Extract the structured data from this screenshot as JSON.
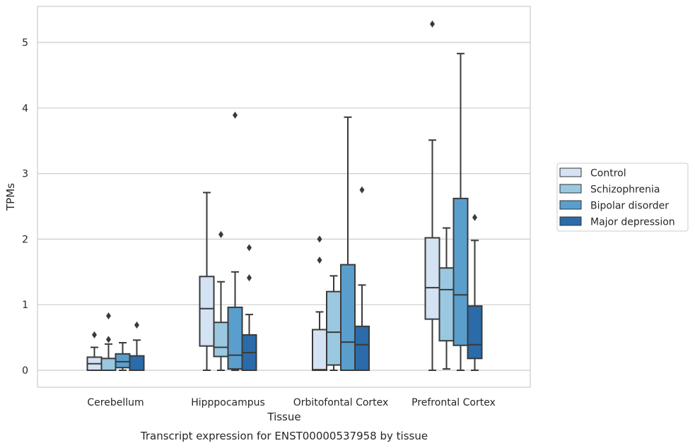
{
  "chart_data": {
    "type": "box",
    "caption": "Transcript expression for ENST00000537958 by tissue",
    "xlabel": "Tissue",
    "ylabel": "TPMs",
    "ylim": [
      -0.25,
      5.55
    ],
    "yticks": [
      0,
      1,
      2,
      3,
      4,
      5
    ],
    "grid": "horizontal",
    "legend_position": "right",
    "categories": [
      "Cerebellum",
      "Hipppocampus",
      "Orbitofontal Cortex",
      "Prefrontal Cortex"
    ],
    "series": [
      {
        "name": "Control",
        "color": "#d3e3f3",
        "boxes": [
          {
            "whislo": 0.0,
            "q1": 0.0,
            "med": 0.1,
            "q3": 0.2,
            "whishi": 0.35,
            "fliers": [
              0.54
            ]
          },
          {
            "whislo": 0.0,
            "q1": 0.37,
            "med": 0.94,
            "q3": 1.43,
            "whishi": 2.71,
            "fliers": []
          },
          {
            "whislo": 0.0,
            "q1": 0.0,
            "med": 0.01,
            "q3": 0.62,
            "whishi": 0.89,
            "fliers": [
              1.68,
              2.0
            ]
          },
          {
            "whislo": 0.0,
            "q1": 0.78,
            "med": 1.26,
            "q3": 2.02,
            "whishi": 3.51,
            "fliers": [
              5.28
            ]
          }
        ]
      },
      {
        "name": "Schizophrenia",
        "color": "#9ac8e0",
        "boxes": [
          {
            "whislo": 0.0,
            "q1": 0.0,
            "med": 0.0,
            "q3": 0.18,
            "whishi": 0.4,
            "fliers": [
              0.47,
              0.83
            ]
          },
          {
            "whislo": 0.0,
            "q1": 0.21,
            "med": 0.35,
            "q3": 0.73,
            "whishi": 1.35,
            "fliers": [
              2.07
            ]
          },
          {
            "whislo": 0.0,
            "q1": 0.08,
            "med": 0.58,
            "q3": 1.2,
            "whishi": 1.44,
            "fliers": []
          },
          {
            "whislo": 0.02,
            "q1": 0.45,
            "med": 1.23,
            "q3": 1.56,
            "whishi": 2.17,
            "fliers": []
          }
        ]
      },
      {
        "name": "Bipolar disorder",
        "color": "#5a9ecd",
        "boxes": [
          {
            "whislo": 0.0,
            "q1": 0.04,
            "med": 0.13,
            "q3": 0.25,
            "whishi": 0.42,
            "fliers": []
          },
          {
            "whislo": 0.0,
            "q1": 0.02,
            "med": 0.23,
            "q3": 0.96,
            "whishi": 1.5,
            "fliers": [
              3.89
            ]
          },
          {
            "whislo": 0.0,
            "q1": 0.0,
            "med": 0.43,
            "q3": 1.61,
            "whishi": 3.86,
            "fliers": []
          },
          {
            "whislo": 0.0,
            "q1": 0.38,
            "med": 1.15,
            "q3": 2.62,
            "whishi": 4.83,
            "fliers": []
          }
        ]
      },
      {
        "name": "Major depression",
        "color": "#2b6ba9",
        "boxes": [
          {
            "whislo": 0.0,
            "q1": 0.0,
            "med": 0.0,
            "q3": 0.22,
            "whishi": 0.46,
            "fliers": [
              0.69
            ]
          },
          {
            "whislo": 0.0,
            "q1": 0.0,
            "med": 0.27,
            "q3": 0.54,
            "whishi": 0.85,
            "fliers": [
              1.41,
              1.87
            ]
          },
          {
            "whislo": 0.0,
            "q1": 0.0,
            "med": 0.39,
            "q3": 0.67,
            "whishi": 1.3,
            "fliers": [
              2.75
            ]
          },
          {
            "whislo": 0.0,
            "q1": 0.18,
            "med": 0.39,
            "q3": 0.98,
            "whishi": 1.98,
            "fliers": [
              2.33
            ]
          }
        ]
      }
    ]
  }
}
